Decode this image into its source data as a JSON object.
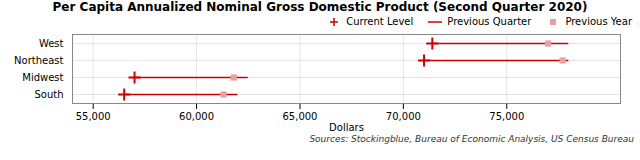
{
  "chart_data": {
    "type": "dot",
    "orientation": "horizontal",
    "title": "Per Capita Annualized Nominal Gross Domestic Product (Second Quarter 2020)",
    "xlabel": "Dollars",
    "source": "Sources: Stockingblue, Bureau of Economic Analysis, US Census Bureau",
    "categories": [
      "West",
      "Northeast",
      "Midwest",
      "South"
    ],
    "series": [
      {
        "name": "Current Level",
        "type": "dot",
        "marker": "plus",
        "color": "#cc0000",
        "values": [
          71400,
          71000,
          57000,
          56500
        ]
      },
      {
        "name": "Previous Quarter",
        "type": "segment",
        "color": "#cc0000",
        "values": [
          78000,
          78000,
          62500,
          62000
        ]
      },
      {
        "name": "Previous Year",
        "type": "dot",
        "marker": "square",
        "color": "#e8a0a0",
        "values": [
          77000,
          77700,
          61800,
          61300
        ]
      }
    ],
    "xlim": [
      54000,
      80500
    ],
    "xticks": [
      {
        "value": 55000,
        "label": "55,000"
      },
      {
        "value": 60000,
        "label": "60,000"
      },
      {
        "value": 65000,
        "label": "65,000"
      },
      {
        "value": 70000,
        "label": "70,000"
      },
      {
        "value": 75000,
        "label": "75,000"
      }
    ],
    "grid": true,
    "legend": "upper right"
  }
}
